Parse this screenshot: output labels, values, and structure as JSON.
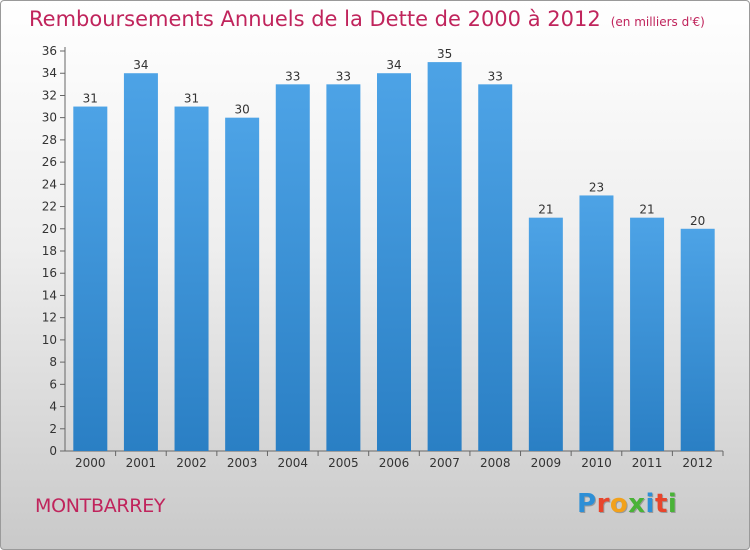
{
  "header": {
    "title": "Remboursements Annuels de la Dette de 2000 à 2012",
    "subtitle": "(en milliers d'€)"
  },
  "footer": {
    "town": "MONTBARREY",
    "logo_letters": [
      "P",
      "r",
      "o",
      "x",
      "i",
      "t",
      "i"
    ],
    "logo_colors": [
      "#2e8fd6",
      "#e8452c",
      "#f2a11b",
      "#49b337",
      "#2e8fd6",
      "#e8452c",
      "#49b337"
    ]
  },
  "chart_data": {
    "type": "bar",
    "title": "Remboursements Annuels de la Dette de 2000 à 2012",
    "subtitle": "(en milliers d'€)",
    "categories": [
      "2000",
      "2001",
      "2002",
      "2003",
      "2004",
      "2005",
      "2006",
      "2007",
      "2008",
      "2009",
      "2010",
      "2011",
      "2012"
    ],
    "values": [
      31,
      34,
      31,
      30,
      33,
      33,
      34,
      35,
      33,
      21,
      23,
      21,
      20
    ],
    "ylim": [
      0,
      36
    ],
    "yticks": [
      0,
      2,
      4,
      6,
      8,
      10,
      12,
      14,
      16,
      18,
      20,
      22,
      24,
      26,
      28,
      30,
      32,
      34,
      36
    ],
    "grid": false,
    "bar_color": "#4da3e6",
    "bar_color_dark": "#2a7fc4"
  }
}
